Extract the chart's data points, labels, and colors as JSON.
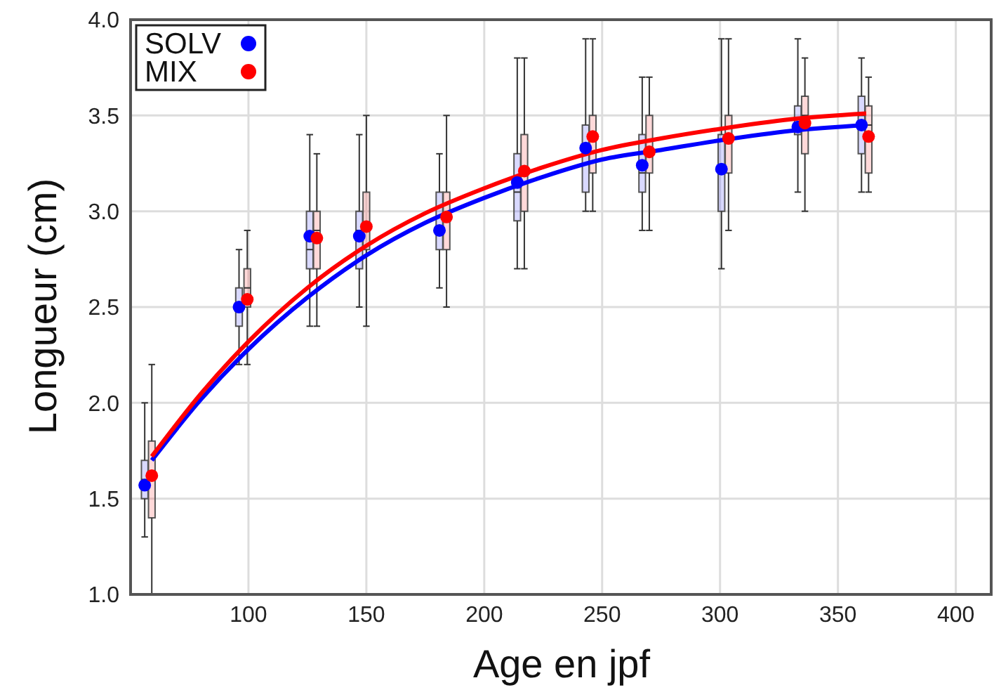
{
  "chart_data": {
    "type": "box",
    "xlabel": "Age en jpf",
    "ylabel": "Longueur (cm)",
    "xlim": [
      50,
      415
    ],
    "xticks": [
      100,
      150,
      200,
      250,
      300,
      350,
      400
    ],
    "ylim": [
      1,
      4
    ],
    "yticks": [
      {
        "value": 1,
        "label": "1.0"
      },
      1.5,
      {
        "value": 2,
        "label": "2.0"
      },
      2.5,
      {
        "value": 3,
        "label": "3.0"
      },
      3.5,
      {
        "value": 4,
        "label": "4.0"
      }
    ],
    "grid": true,
    "legend": "top left",
    "marker": "circle",
    "series": [
      {
        "name": "SOLV",
        "color": "#0000ff",
        "x": [
          56,
          96,
          126,
          147,
          181,
          214,
          243,
          267,
          300.6,
          333,
          360
        ],
        "boxes": [
          {
            "low": 1.3,
            "q1": 1.5,
            "median": 1.6,
            "q3": 1.7,
            "high": 2.0,
            "mean": 1.57
          },
          {
            "low": 2.2,
            "q1": 2.4,
            "median": 2.5,
            "q3": 2.6,
            "high": 2.8,
            "mean": 2.5
          },
          {
            "low": 2.4,
            "q1": 2.7,
            "median": 2.8,
            "q3": 3.0,
            "high": 3.4,
            "mean": 2.87
          },
          {
            "low": 2.5,
            "q1": 2.7,
            "median": 2.9,
            "q3": 3.0,
            "high": 3.4,
            "mean": 2.87
          },
          {
            "low": 2.6,
            "q1": 2.8,
            "median": 2.9,
            "q3": 3.1,
            "high": 3.3,
            "mean": 2.9
          },
          {
            "low": 2.7,
            "q1": 2.95,
            "median": 3.1,
            "q3": 3.3,
            "high": 3.8,
            "mean": 3.15
          },
          {
            "low": 3.0,
            "q1": 3.1,
            "median": 3.3,
            "q3": 3.45,
            "high": 3.9,
            "mean": 3.33
          },
          {
            "low": 2.9,
            "q1": 3.1,
            "median": 3.2,
            "q3": 3.4,
            "high": 3.7,
            "mean": 3.24
          },
          {
            "low": 2.7,
            "q1": 3.0,
            "median": 3.2,
            "q3": 3.4,
            "high": 3.9,
            "mean": 3.22
          },
          {
            "low": 3.1,
            "q1": 3.4,
            "median": 3.45,
            "q3": 3.55,
            "high": 3.9,
            "mean": 3.44
          },
          {
            "low": 3.1,
            "q1": 3.3,
            "median": 3.5,
            "q3": 3.6,
            "high": 3.8,
            "mean": 3.45
          }
        ]
      },
      {
        "name": "MIX",
        "color": "#ff0000",
        "x": [
          59,
          99.5,
          129,
          150,
          184,
          217,
          246,
          270,
          303.6,
          336,
          363
        ],
        "boxes": [
          {
            "low": 1.0,
            "q1": 1.4,
            "median": 1.6,
            "q3": 1.8,
            "high": 2.2,
            "mean": 1.62
          },
          {
            "low": 2.2,
            "q1": 2.5,
            "median": 2.6,
            "q3": 2.7,
            "high": 2.9,
            "mean": 2.54
          },
          {
            "low": 2.4,
            "q1": 2.7,
            "median": 2.9,
            "q3": 3.0,
            "high": 3.3,
            "mean": 2.86
          },
          {
            "low": 2.4,
            "q1": 2.8,
            "median": 2.9,
            "q3": 3.1,
            "high": 3.5,
            "mean": 2.92
          },
          {
            "low": 2.5,
            "q1": 2.8,
            "median": 2.95,
            "q3": 3.1,
            "high": 3.5,
            "mean": 2.97
          },
          {
            "low": 2.7,
            "q1": 3.0,
            "median": 3.2,
            "q3": 3.4,
            "high": 3.8,
            "mean": 3.21
          },
          {
            "low": 3.0,
            "q1": 3.2,
            "median": 3.4,
            "q3": 3.5,
            "high": 3.9,
            "mean": 3.39
          },
          {
            "low": 2.9,
            "q1": 3.2,
            "median": 3.3,
            "q3": 3.5,
            "high": 3.7,
            "mean": 3.31
          },
          {
            "low": 2.9,
            "q1": 3.2,
            "median": 3.4,
            "q3": 3.5,
            "high": 3.9,
            "mean": 3.38
          },
          {
            "low": 3.0,
            "q1": 3.3,
            "median": 3.5,
            "q3": 3.6,
            "high": 3.8,
            "mean": 3.46
          },
          {
            "low": 3.1,
            "q1": 3.2,
            "median": 3.45,
            "q3": 3.55,
            "high": 3.7,
            "mean": 3.39
          }
        ]
      },
      {
        "type": "line",
        "marker": "none",
        "color": "#0000ff",
        "x": [
          59,
          80,
          100,
          125,
          150,
          175,
          200,
          225,
          250,
          275,
          300,
          330,
          362
        ],
        "values": [
          1.7,
          2.02,
          2.28,
          2.55,
          2.77,
          2.94,
          3.07,
          3.18,
          3.27,
          3.32,
          3.37,
          3.42,
          3.45
        ]
      },
      {
        "type": "line",
        "marker": "none",
        "color": "#ff0000",
        "x": [
          59,
          80,
          100,
          125,
          150,
          175,
          200,
          225,
          250,
          275,
          300,
          330,
          362
        ],
        "values": [
          1.72,
          2.05,
          2.32,
          2.6,
          2.82,
          2.99,
          3.12,
          3.23,
          3.32,
          3.38,
          3.43,
          3.48,
          3.51
        ]
      }
    ]
  }
}
